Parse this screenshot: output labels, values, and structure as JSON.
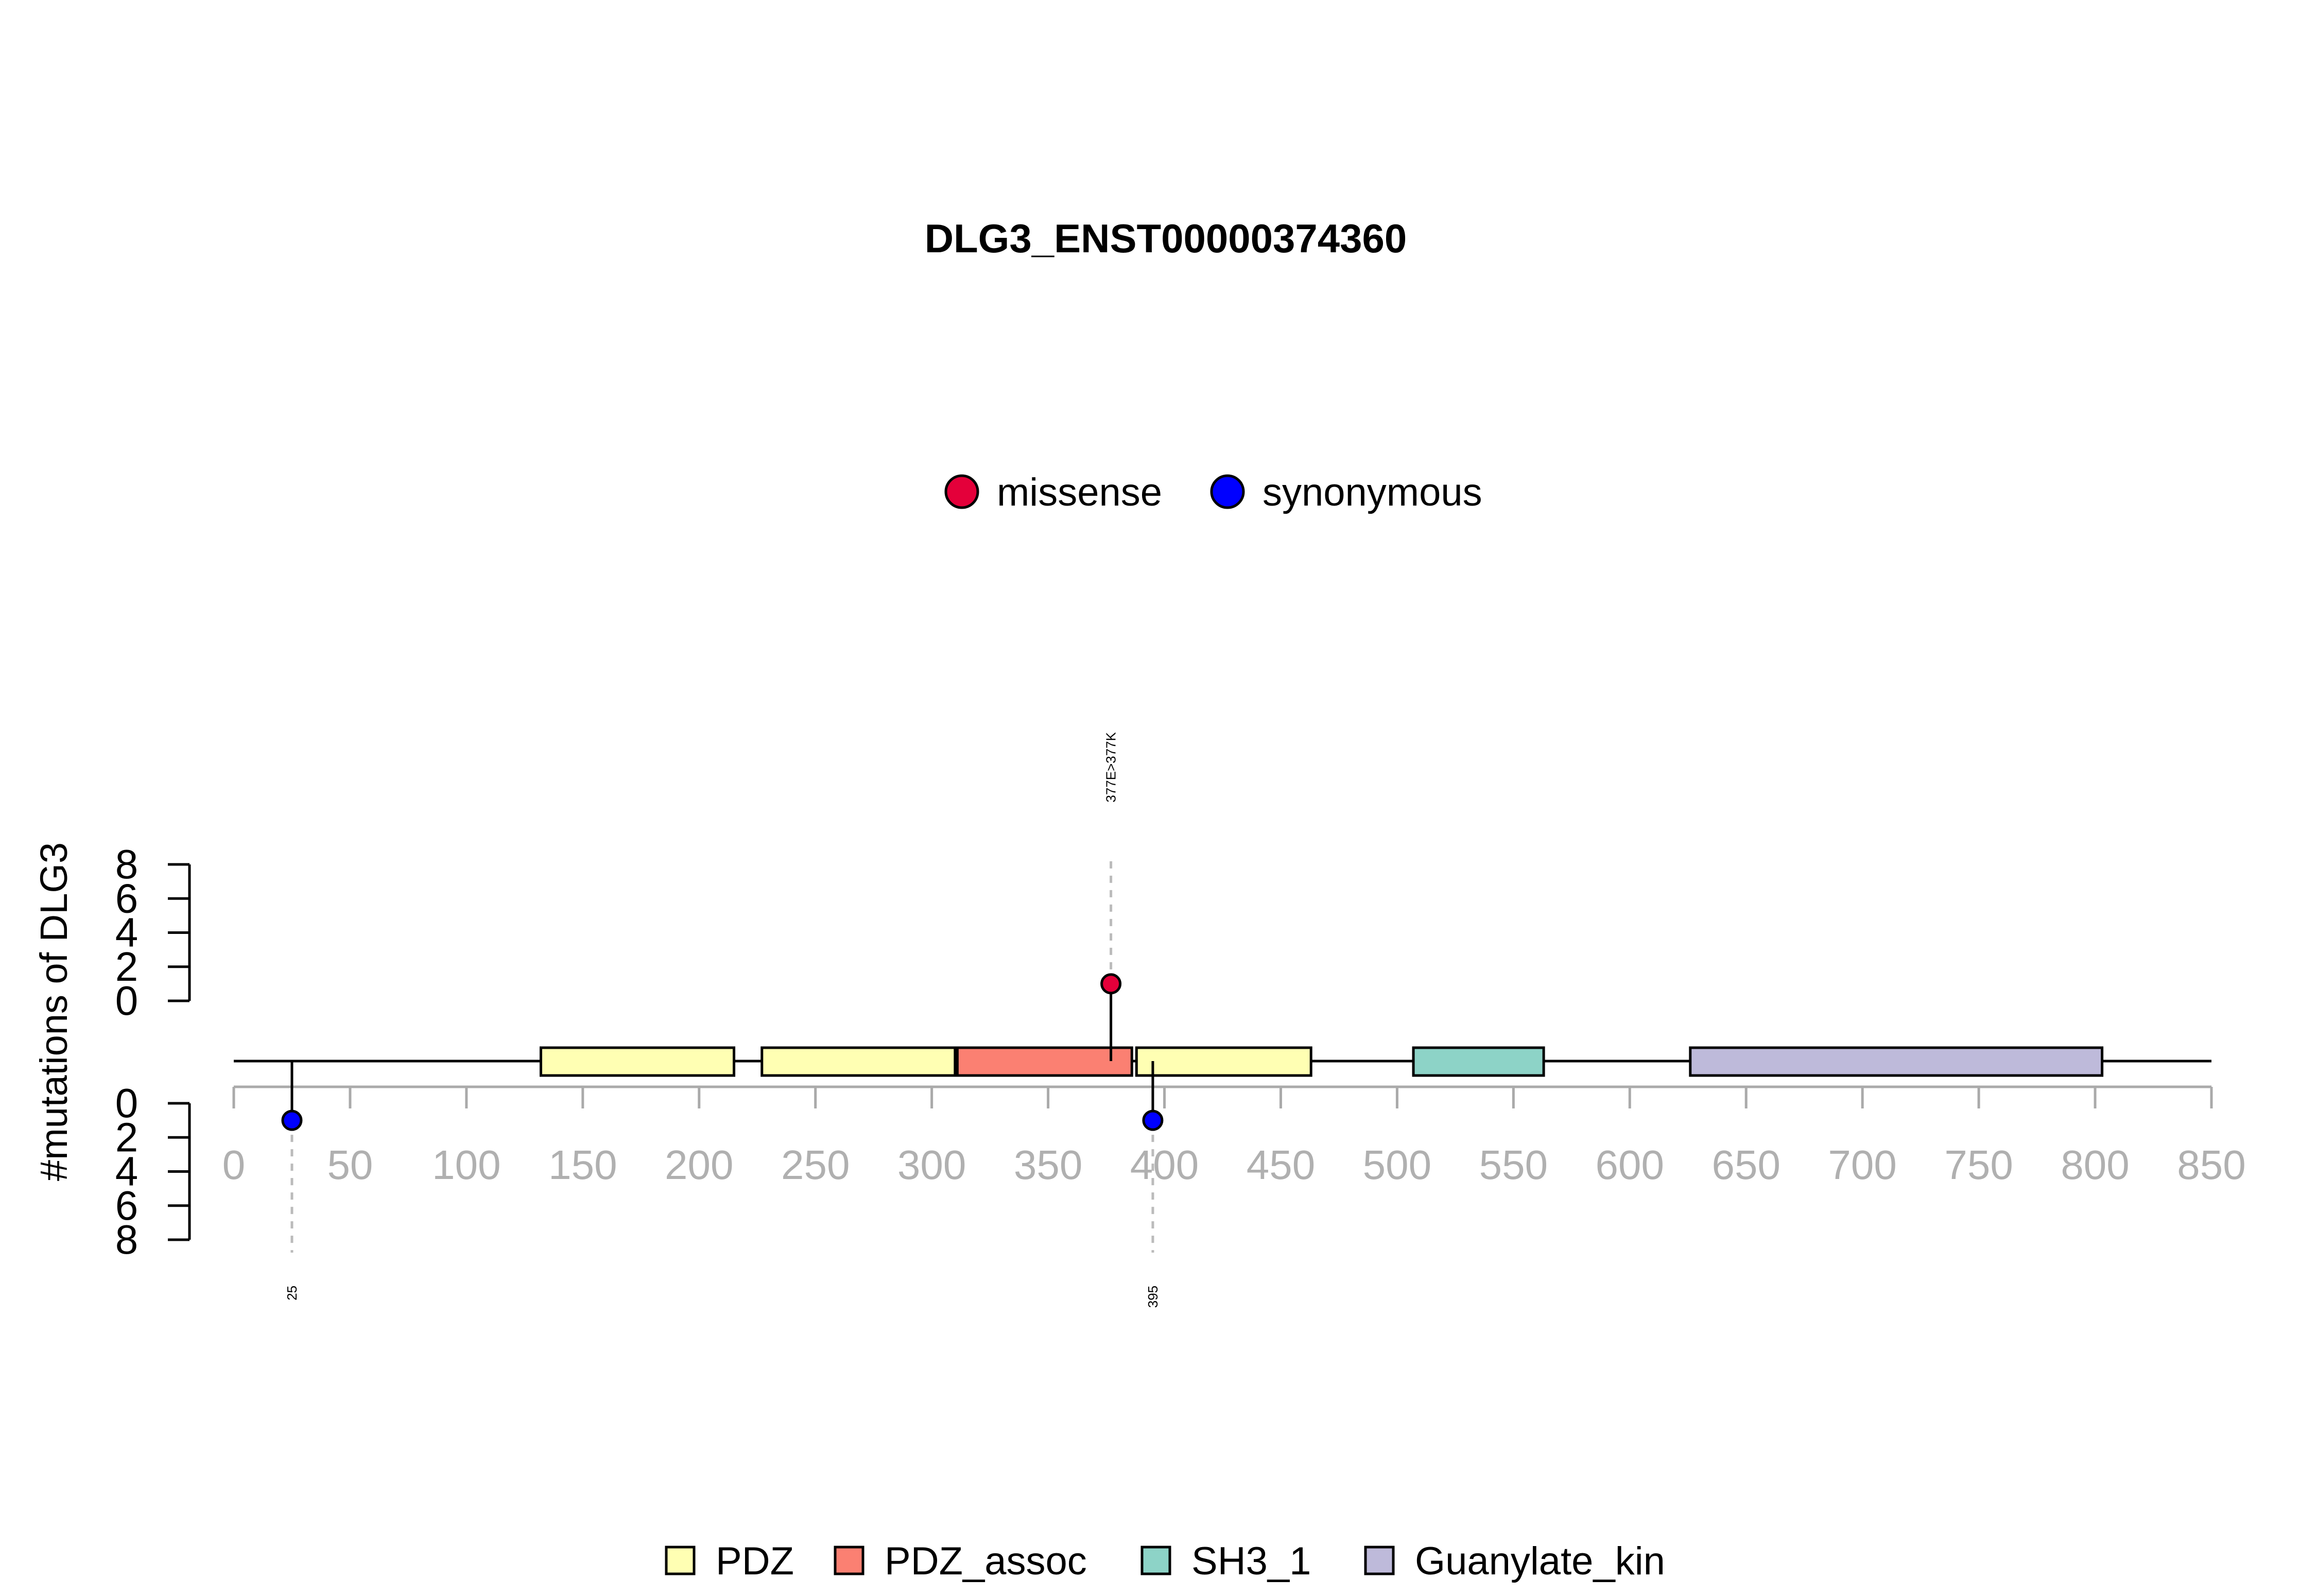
{
  "chart_data": {
    "type": "lollipop",
    "title": "DLG3_ENST00000374360",
    "ylabel": "#mutations of DLG3",
    "x_ticks": [
      0,
      50,
      100,
      150,
      200,
      250,
      300,
      350,
      400,
      450,
      500,
      550,
      600,
      650,
      700,
      750,
      800,
      850
    ],
    "xlim": [
      0,
      850
    ],
    "top_y_ticks": [
      0,
      2,
      4,
      6,
      8
    ],
    "bottom_y_ticks": [
      0,
      2,
      4,
      6,
      8
    ],
    "ylim": [
      0,
      8
    ],
    "mutation_legend": [
      {
        "name": "missense",
        "color": "#E4003A"
      },
      {
        "name": "synonymous",
        "color": "#0000FF"
      }
    ],
    "domain_legend": [
      {
        "name": "PDZ",
        "color": "#FFFFB3"
      },
      {
        "name": "PDZ_assoc",
        "color": "#FB8072"
      },
      {
        "name": "SH3_1",
        "color": "#8DD3C7"
      },
      {
        "name": "Guanylate_kin",
        "color": "#BEBADA"
      }
    ],
    "domains": [
      {
        "name": "PDZ",
        "start": 132,
        "end": 215,
        "color": "#FFFFB3"
      },
      {
        "name": "PDZ",
        "start": 227,
        "end": 310,
        "color": "#FFFFB3"
      },
      {
        "name": "PDZ_assoc",
        "start": 311,
        "end": 386,
        "color": "#FB8072"
      },
      {
        "name": "PDZ",
        "start": 388,
        "end": 463,
        "color": "#FFFFB3"
      },
      {
        "name": "SH3_1",
        "start": 507,
        "end": 563,
        "color": "#8DD3C7"
      },
      {
        "name": "Guanylate_kin",
        "start": 626,
        "end": 803,
        "color": "#BEBADA"
      }
    ],
    "mutations": [
      {
        "position": 377,
        "label": "377E>377K",
        "type": "missense",
        "side": "top",
        "count": 1
      },
      {
        "position": 25,
        "label": "25",
        "type": "synonymous",
        "side": "bottom",
        "count": 1
      },
      {
        "position": 395,
        "label": "395",
        "type": "synonymous",
        "side": "bottom",
        "count": 1
      }
    ],
    "grid": false
  }
}
